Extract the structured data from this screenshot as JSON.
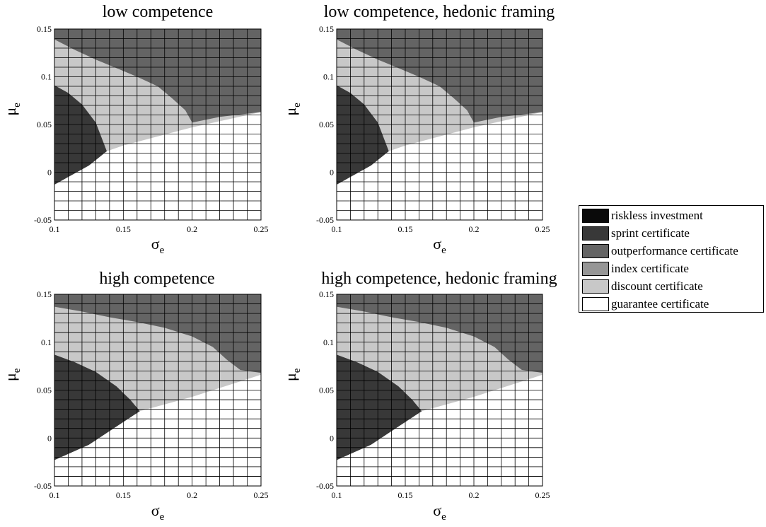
{
  "colors": {
    "riskless": "#0a0a0a",
    "sprint": "#383838",
    "outperformance": "#646464",
    "index": "#969696",
    "discount": "#c8c8c8",
    "guarantee": "#ffffff"
  },
  "chart_data": [
    {
      "type": "heatmap",
      "title": "low competence",
      "xlabel": {
        "main": "σ",
        "sub": "e"
      },
      "ylabel": {
        "main": "μ",
        "sub": "e"
      },
      "xlim": [
        0.1,
        0.25
      ],
      "ylim": [
        -0.05,
        0.15
      ],
      "xticks": [
        "0.1",
        "0.15",
        "0.2",
        "0.25"
      ],
      "yticks": [
        "-0.05",
        "0",
        "0.05",
        "0.1",
        "0.15"
      ],
      "grid": true,
      "regions": [
        {
          "category": "outperformance",
          "boundary_x": [
            0.1,
            0.115,
            0.13,
            0.145,
            0.16,
            0.175,
            0.185,
            0.195,
            0.2,
            0.22,
            0.25
          ],
          "boundary_y": [
            0.139,
            0.128,
            0.118,
            0.109,
            0.1,
            0.09,
            0.078,
            0.065,
            0.052,
            0.058,
            0.063
          ]
        },
        {
          "category": "sprint",
          "boundary_x": [
            0.1,
            0.11,
            0.12,
            0.13,
            0.138
          ],
          "boundary_y": [
            0.091,
            0.083,
            0.071,
            0.052,
            0.022
          ]
        },
        {
          "category": "guarantee",
          "boundary_x": [
            0.1,
            0.125,
            0.138,
            0.15,
            0.2,
            0.25
          ],
          "boundary_y": [
            -0.013,
            0.007,
            0.022,
            0.028,
            0.047,
            0.063
          ]
        }
      ]
    },
    {
      "type": "heatmap",
      "title": "low competence, hedonic framing",
      "xlabel": {
        "main": "σ",
        "sub": "e"
      },
      "ylabel": {
        "main": "μ",
        "sub": "e"
      },
      "xlim": [
        0.1,
        0.25
      ],
      "ylim": [
        -0.05,
        0.15
      ],
      "xticks": [
        "0.1",
        "0.15",
        "0.2",
        "0.25"
      ],
      "yticks": [
        "-0.05",
        "0",
        "0.05",
        "0.1",
        "0.15"
      ],
      "grid": true,
      "regions": [
        {
          "category": "outperformance",
          "boundary_x": [
            0.1,
            0.115,
            0.13,
            0.145,
            0.16,
            0.175,
            0.185,
            0.195,
            0.2,
            0.22,
            0.25
          ],
          "boundary_y": [
            0.139,
            0.128,
            0.118,
            0.109,
            0.1,
            0.09,
            0.078,
            0.065,
            0.052,
            0.058,
            0.063
          ]
        },
        {
          "category": "sprint",
          "boundary_x": [
            0.1,
            0.11,
            0.12,
            0.13,
            0.138
          ],
          "boundary_y": [
            0.091,
            0.083,
            0.071,
            0.052,
            0.022
          ]
        },
        {
          "category": "guarantee",
          "boundary_x": [
            0.1,
            0.125,
            0.138,
            0.15,
            0.2,
            0.25
          ],
          "boundary_y": [
            -0.013,
            0.007,
            0.022,
            0.028,
            0.047,
            0.063
          ]
        }
      ]
    },
    {
      "type": "heatmap",
      "title": "high competence",
      "xlabel": {
        "main": "σ",
        "sub": "e"
      },
      "ylabel": {
        "main": "μ",
        "sub": "e"
      },
      "xlim": [
        0.1,
        0.25
      ],
      "ylim": [
        -0.05,
        0.15
      ],
      "xticks": [
        "0.1",
        "0.15",
        "0.2",
        "0.25"
      ],
      "yticks": [
        "-0.05",
        "0",
        "0.05",
        "0.1",
        "0.15"
      ],
      "grid": true,
      "regions": [
        {
          "category": "outperformance",
          "boundary_x": [
            0.1,
            0.12,
            0.14,
            0.16,
            0.18,
            0.2,
            0.215,
            0.225,
            0.235,
            0.25
          ],
          "boundary_y": [
            0.137,
            0.132,
            0.126,
            0.121,
            0.115,
            0.106,
            0.095,
            0.082,
            0.071,
            0.068
          ]
        },
        {
          "category": "sprint",
          "boundary_x": [
            0.1,
            0.115,
            0.13,
            0.145,
            0.155,
            0.162
          ],
          "boundary_y": [
            0.087,
            0.079,
            0.069,
            0.054,
            0.04,
            0.028
          ]
        },
        {
          "category": "guarantee",
          "boundary_x": [
            0.1,
            0.125,
            0.145,
            0.162,
            0.2,
            0.25
          ],
          "boundary_y": [
            -0.023,
            -0.007,
            0.012,
            0.028,
            0.043,
            0.066
          ]
        }
      ]
    },
    {
      "type": "heatmap",
      "title": "high competence, hedonic framing",
      "xlabel": {
        "main": "σ",
        "sub": "e"
      },
      "ylabel": {
        "main": "μ",
        "sub": "e"
      },
      "xlim": [
        0.1,
        0.25
      ],
      "ylim": [
        -0.05,
        0.15
      ],
      "xticks": [
        "0.1",
        "0.15",
        "0.2",
        "0.25"
      ],
      "yticks": [
        "-0.05",
        "0",
        "0.05",
        "0.1",
        "0.15"
      ],
      "grid": true,
      "regions": [
        {
          "category": "outperformance",
          "boundary_x": [
            0.1,
            0.12,
            0.14,
            0.16,
            0.18,
            0.2,
            0.215,
            0.225,
            0.235,
            0.25
          ],
          "boundary_y": [
            0.137,
            0.132,
            0.126,
            0.121,
            0.115,
            0.106,
            0.095,
            0.082,
            0.071,
            0.068
          ]
        },
        {
          "category": "sprint",
          "boundary_x": [
            0.1,
            0.115,
            0.13,
            0.145,
            0.155,
            0.162
          ],
          "boundary_y": [
            0.087,
            0.079,
            0.069,
            0.054,
            0.04,
            0.028
          ]
        },
        {
          "category": "guarantee",
          "boundary_x": [
            0.1,
            0.125,
            0.145,
            0.162,
            0.2,
            0.25
          ],
          "boundary_y": [
            -0.023,
            -0.007,
            0.012,
            0.028,
            0.043,
            0.066
          ]
        }
      ]
    }
  ],
  "legend": {
    "placement": "right",
    "items": [
      {
        "key": "riskless",
        "label": "riskless investment"
      },
      {
        "key": "sprint",
        "label": "sprint certificate"
      },
      {
        "key": "outperformance",
        "label": "outperformance certificate"
      },
      {
        "key": "index",
        "label": "index certificate"
      },
      {
        "key": "discount",
        "label": "discount certificate"
      },
      {
        "key": "guarantee",
        "label": "guarantee certificate"
      }
    ]
  }
}
